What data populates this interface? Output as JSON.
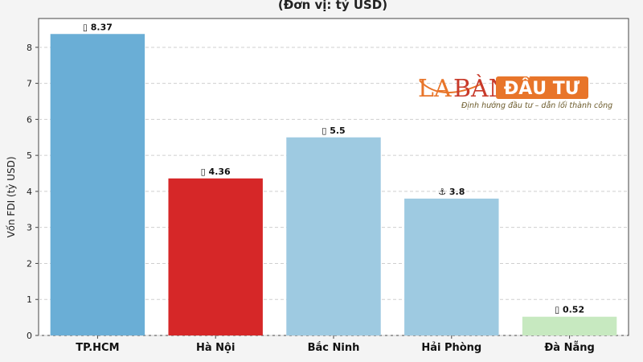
{
  "subtitle": "(Đơn vị: tỷ USD)",
  "logo": {
    "la": "LA",
    "ban": "BÀN",
    "dautu": "ĐẦU TƯ",
    "tagline": "Định hướng đầu tư – dẫn lối thành công"
  },
  "chart_data": {
    "type": "bar",
    "title": "",
    "subtitle": "(Đơn vị: tỷ USD)",
    "xlabel": "",
    "ylabel": "Vốn FDI (tỷ USD)",
    "ylim": [
      0,
      8.8
    ],
    "yticks": [
      0,
      1,
      2,
      3,
      4,
      5,
      6,
      7,
      8
    ],
    "grid": true,
    "categories": [
      "TP.HCM",
      "Hà Nội",
      "Bắc Ninh",
      "Hải Phòng",
      "Đà Nẵng"
    ],
    "values": [
      8.37,
      4.36,
      5.5,
      3.8,
      0.52
    ],
    "data_labels": [
      "▯ 8.37",
      "▯ 4.36",
      "▯ 5.5",
      "⚓ 3.8",
      "▯ 0.52"
    ],
    "colors": [
      "#6aaed6",
      "#d62728",
      "#9ecae1",
      "#9ecae1",
      "#c7e9c0"
    ]
  }
}
